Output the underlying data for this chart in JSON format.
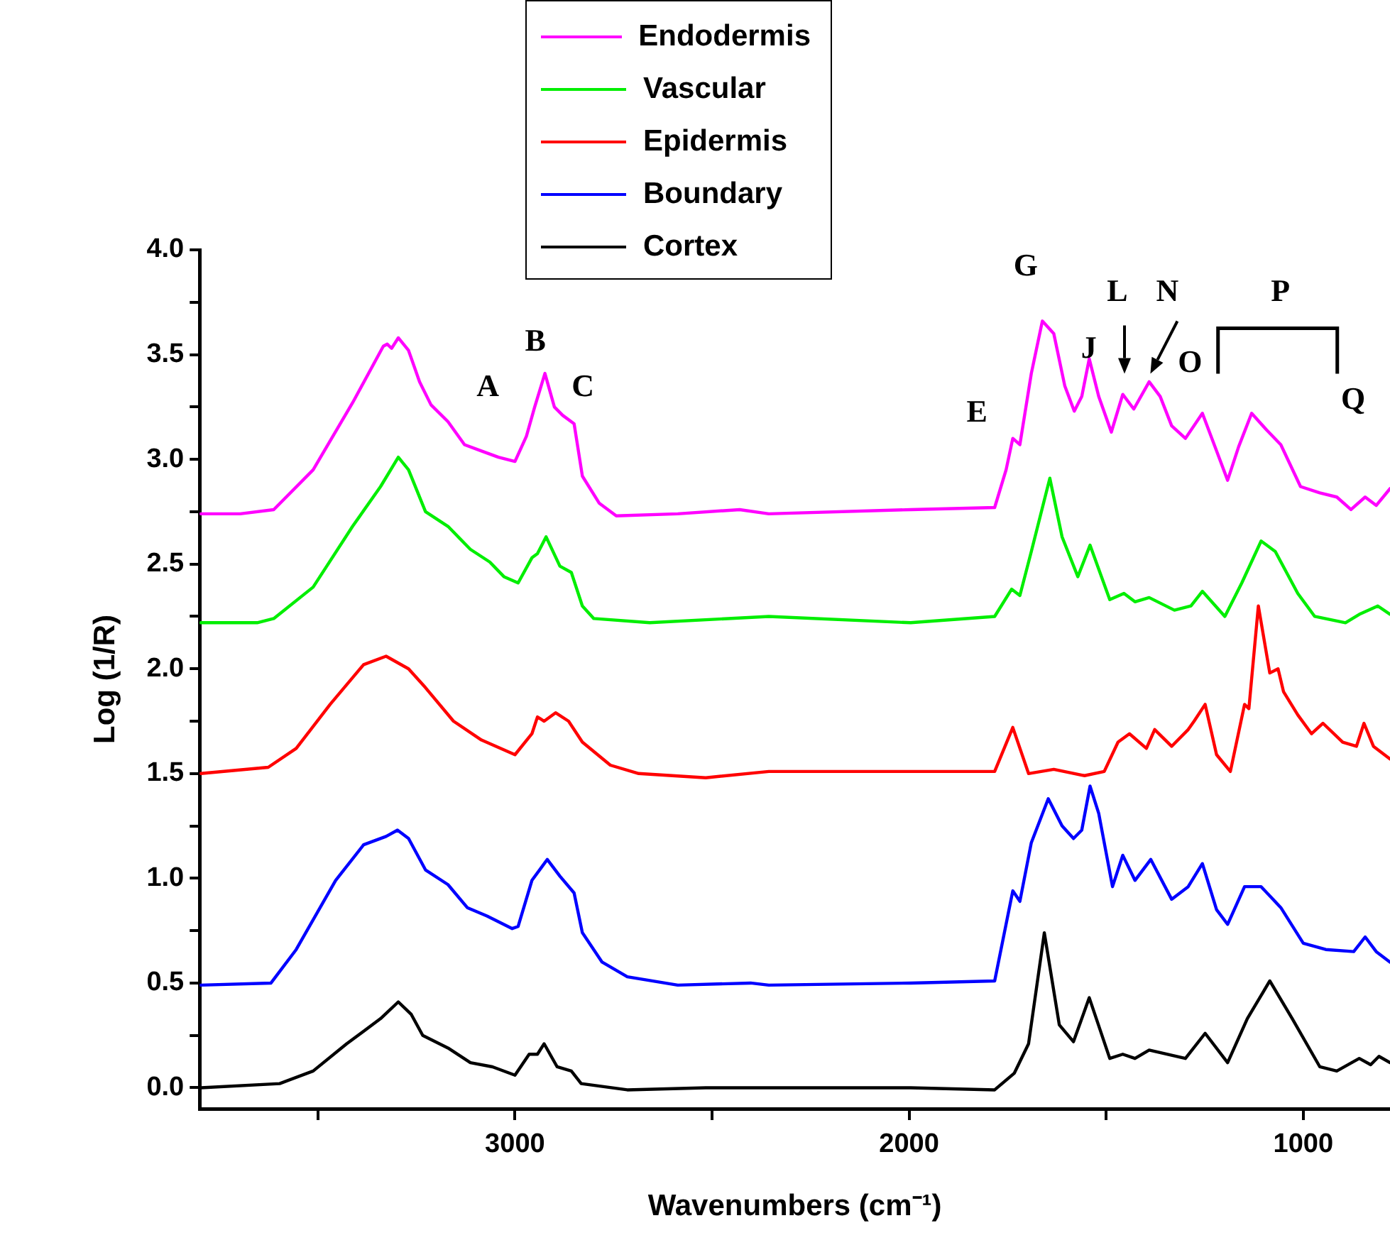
{
  "chart_data": {
    "type": "line",
    "xlabel": "Wavenumbers (cm⁻¹)",
    "ylabel": "Log (1/R)",
    "legend": "top",
    "grid": false,
    "marker": "none",
    "line_style": "solid",
    "xlim": [
      3800,
      780
    ],
    "ylim": [
      -0.1,
      4.0
    ],
    "xticks": [
      {
        "value": 3500,
        "label": null
      },
      {
        "value": 3000,
        "label": "3000"
      },
      {
        "value": 2500,
        "label": null
      },
      {
        "value": 2000,
        "label": "2000"
      },
      {
        "value": 1500,
        "label": null
      },
      {
        "value": 1000,
        "label": "1000"
      }
    ],
    "yticks": [
      {
        "value": 0,
        "label": "0.0"
      },
      {
        "value": 0.25,
        "label": null
      },
      {
        "value": 0.5,
        "label": "0.5"
      },
      {
        "value": 0.75,
        "label": null
      },
      {
        "value": 1.0,
        "label": "1.0"
      },
      {
        "value": 1.25,
        "label": null
      },
      {
        "value": 1.5,
        "label": "1.5"
      },
      {
        "value": 1.75,
        "label": null
      },
      {
        "value": 2.0,
        "label": "2.0"
      },
      {
        "value": 2.25,
        "label": null
      },
      {
        "value": 2.5,
        "label": "2.5"
      },
      {
        "value": 2.75,
        "label": null
      },
      {
        "value": 3.0,
        "label": "3.0"
      },
      {
        "value": 3.25,
        "label": null
      },
      {
        "value": 3.5,
        "label": "3.5"
      },
      {
        "value": 3.75,
        "label": null
      },
      {
        "value": 4.0,
        "label": "4.0"
      }
    ],
    "annotations": [
      "A",
      "B",
      "C",
      "E",
      "G",
      "J",
      "L",
      "N",
      "O",
      "P",
      "Q"
    ],
    "series": [
      {
        "name": "Endodermis",
        "color": "#ff00ff",
        "x": [
          3797,
          3697,
          3612,
          3512,
          3412,
          3334,
          3324,
          3313,
          3296,
          3270,
          3242,
          3213,
          3170,
          3128,
          3085,
          3042,
          3000,
          2971,
          2950,
          2924,
          2900,
          2879,
          2850,
          2829,
          2786,
          2743,
          2587,
          2430,
          2356,
          1996,
          1783,
          1754,
          1737,
          1719,
          1690,
          1662,
          1633,
          1605,
          1581,
          1562,
          1543,
          1519,
          1487,
          1458,
          1430,
          1391,
          1363,
          1334,
          1299,
          1256,
          1220,
          1192,
          1164,
          1131,
          1093,
          1057,
          1007,
          958,
          915,
          879,
          843,
          815,
          780
        ],
        "values": [
          2.74,
          2.74,
          2.76,
          2.95,
          3.27,
          3.54,
          3.55,
          3.53,
          3.58,
          3.52,
          3.37,
          3.26,
          3.18,
          3.07,
          3.04,
          3.01,
          2.99,
          3.11,
          3.25,
          3.41,
          3.25,
          3.21,
          3.17,
          2.92,
          2.79,
          2.73,
          2.74,
          2.76,
          2.74,
          2.76,
          2.77,
          2.95,
          3.1,
          3.07,
          3.41,
          3.66,
          3.6,
          3.35,
          3.23,
          3.3,
          3.48,
          3.3,
          3.13,
          3.31,
          3.24,
          3.37,
          3.3,
          3.16,
          3.1,
          3.22,
          3.04,
          2.9,
          3.06,
          3.22,
          3.14,
          3.07,
          2.87,
          2.84,
          2.82,
          2.76,
          2.82,
          2.78,
          2.86
        ]
      },
      {
        "name": "Vascular",
        "color": "#00ee00",
        "x": [
          3797,
          3654,
          3612,
          3512,
          3412,
          3341,
          3296,
          3270,
          3227,
          3170,
          3113,
          3064,
          3028,
          2992,
          2957,
          2943,
          2921,
          2886,
          2857,
          2829,
          2800,
          2658,
          2356,
          1996,
          1783,
          1740,
          1719,
          1690,
          1643,
          1612,
          1572,
          1541,
          1491,
          1455,
          1427,
          1391,
          1327,
          1285,
          1256,
          1199,
          1156,
          1107,
          1071,
          1014,
          971,
          893,
          858,
          811,
          780
        ],
        "values": [
          2.22,
          2.22,
          2.24,
          2.39,
          2.68,
          2.87,
          3.01,
          2.95,
          2.75,
          2.68,
          2.57,
          2.51,
          2.44,
          2.41,
          2.53,
          2.55,
          2.63,
          2.49,
          2.46,
          2.3,
          2.24,
          2.22,
          2.25,
          2.22,
          2.25,
          2.38,
          2.35,
          2.56,
          2.91,
          2.63,
          2.44,
          2.59,
          2.33,
          2.36,
          2.32,
          2.34,
          2.28,
          2.3,
          2.37,
          2.25,
          2.41,
          2.61,
          2.56,
          2.36,
          2.25,
          2.22,
          2.26,
          2.3,
          2.26
        ]
      },
      {
        "name": "Epidermis",
        "color": "#ff0000",
        "x": [
          3797,
          3626,
          3555,
          3469,
          3384,
          3327,
          3270,
          3227,
          3156,
          3085,
          3000,
          2957,
          2943,
          2926,
          2897,
          2864,
          2829,
          2758,
          2686,
          2516,
          2356,
          1996,
          1783,
          1737,
          1697,
          1633,
          1555,
          1505,
          1470,
          1441,
          1398,
          1377,
          1334,
          1292,
          1277,
          1249,
          1220,
          1185,
          1149,
          1138,
          1114,
          1085,
          1064,
          1050,
          1014,
          979,
          950,
          900,
          865,
          846,
          822,
          780
        ],
        "values": [
          1.5,
          1.53,
          1.62,
          1.83,
          2.02,
          2.06,
          2.0,
          1.91,
          1.75,
          1.66,
          1.59,
          1.69,
          1.77,
          1.75,
          1.79,
          1.75,
          1.65,
          1.54,
          1.5,
          1.48,
          1.51,
          1.51,
          1.51,
          1.72,
          1.5,
          1.52,
          1.49,
          1.51,
          1.65,
          1.69,
          1.62,
          1.71,
          1.63,
          1.71,
          1.75,
          1.83,
          1.59,
          1.51,
          1.83,
          1.81,
          2.3,
          1.98,
          2.0,
          1.89,
          1.78,
          1.69,
          1.74,
          1.65,
          1.63,
          1.74,
          1.63,
          1.57
        ]
      },
      {
        "name": "Boundary",
        "color": "#0000ff",
        "x": [
          3797,
          3619,
          3555,
          3455,
          3384,
          3327,
          3298,
          3270,
          3227,
          3170,
          3121,
          3071,
          3007,
          2992,
          2957,
          2918,
          2886,
          2850,
          2829,
          2779,
          2715,
          2587,
          2402,
          2356,
          1996,
          1783,
          1737,
          1719,
          1690,
          1647,
          1612,
          1583,
          1562,
          1541,
          1519,
          1484,
          1458,
          1427,
          1387,
          1334,
          1292,
          1256,
          1220,
          1192,
          1149,
          1107,
          1057,
          1000,
          943,
          872,
          843,
          815,
          780
        ],
        "values": [
          0.49,
          0.5,
          0.66,
          0.99,
          1.16,
          1.2,
          1.23,
          1.19,
          1.04,
          0.97,
          0.86,
          0.82,
          0.76,
          0.77,
          0.99,
          1.09,
          1.01,
          0.93,
          0.74,
          0.6,
          0.53,
          0.49,
          0.5,
          0.49,
          0.5,
          0.51,
          0.94,
          0.89,
          1.17,
          1.38,
          1.25,
          1.19,
          1.23,
          1.44,
          1.31,
          0.96,
          1.11,
          0.99,
          1.09,
          0.9,
          0.96,
          1.07,
          0.85,
          0.78,
          0.96,
          0.96,
          0.86,
          0.69,
          0.66,
          0.65,
          0.72,
          0.65,
          0.6
        ]
      },
      {
        "name": "Cortex",
        "color": "#000000",
        "x": [
          3797,
          3597,
          3512,
          3427,
          3341,
          3296,
          3263,
          3234,
          3170,
          3113,
          3057,
          3000,
          2964,
          2943,
          2926,
          2893,
          2857,
          2832,
          2715,
          2516,
          2356,
          1996,
          1783,
          1733,
          1697,
          1657,
          1619,
          1583,
          1543,
          1491,
          1458,
          1427,
          1391,
          1299,
          1249,
          1192,
          1142,
          1085,
          1028,
          958,
          915,
          858,
          829,
          808,
          780
        ],
        "values": [
          0.0,
          0.02,
          0.08,
          0.21,
          0.33,
          0.41,
          0.35,
          0.25,
          0.19,
          0.12,
          0.1,
          0.06,
          0.16,
          0.16,
          0.21,
          0.1,
          0.08,
          0.02,
          -0.01,
          0.0,
          0.0,
          0.0,
          -0.01,
          0.07,
          0.21,
          0.74,
          0.3,
          0.22,
          0.43,
          0.14,
          0.16,
          0.14,
          0.18,
          0.14,
          0.26,
          0.12,
          0.33,
          0.51,
          0.33,
          0.1,
          0.08,
          0.14,
          0.11,
          0.15,
          0.12
        ]
      }
    ]
  }
}
